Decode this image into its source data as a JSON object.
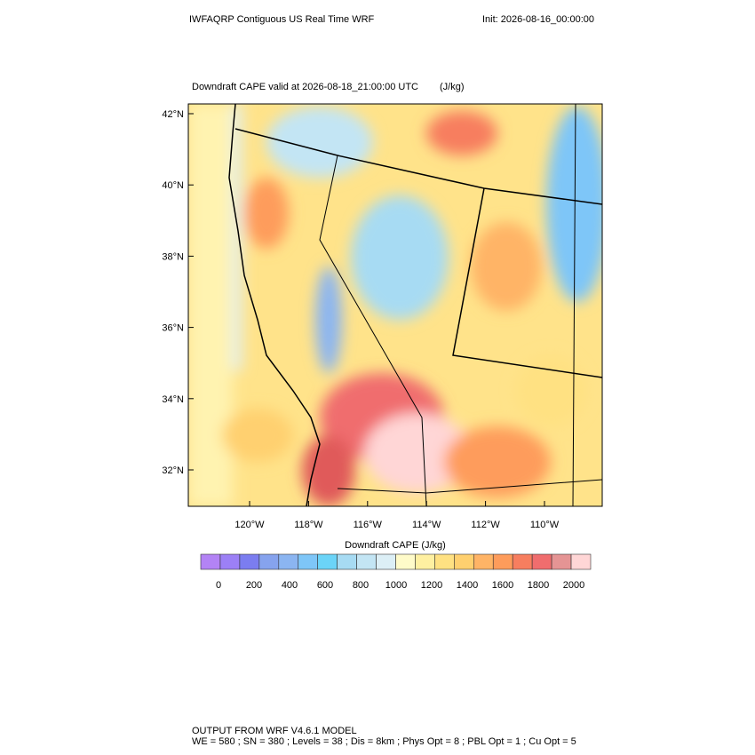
{
  "title": "IWFAQRP Contiguous US Real Time WRF",
  "init": "Init: 2026-08-16_00:00:00",
  "subtitle": "Downdraft CAPE valid at 2026-08-18_21:00:00 UTC",
  "units": "(J/kg)",
  "lat_labels": [
    "42°N",
    "40°N",
    "38°N",
    "36°N",
    "34°N",
    "32°N"
  ],
  "lon_labels": [
    "120°W",
    "118°W",
    "116°W",
    "114°W",
    "112°W",
    "110°W"
  ],
  "colorbar": {
    "title": "Downdraft CAPE  (J/kg)",
    "colors": [
      "#b383f5",
      "#9c80f6",
      "#7b7df0",
      "#86a3ee",
      "#8bb5f1",
      "#7ec6f8",
      "#6bd4f8",
      "#a7dbf3",
      "#c3e5f4",
      "#dceff6",
      "#fffbc9",
      "#fff0a1",
      "#ffe182",
      "#ffd06f",
      "#ffb466",
      "#fe9c5b",
      "#f77e5f",
      "#f06d6e",
      "#e59494",
      "#ffd6d6"
    ],
    "labels": [
      "0",
      "200",
      "400",
      "600",
      "800",
      "1000",
      "1200",
      "1400",
      "1600",
      "1800",
      "2000"
    ]
  },
  "footer": [
    "OUTPUT FROM WRF V4.6.1 MODEL",
    "WE = 580 ; SN = 380 ; Levels = 38 ; Dis = 8km ; Phys Opt = 8 ; PBL Opt = 1 ; Cu Opt = 5"
  ]
}
